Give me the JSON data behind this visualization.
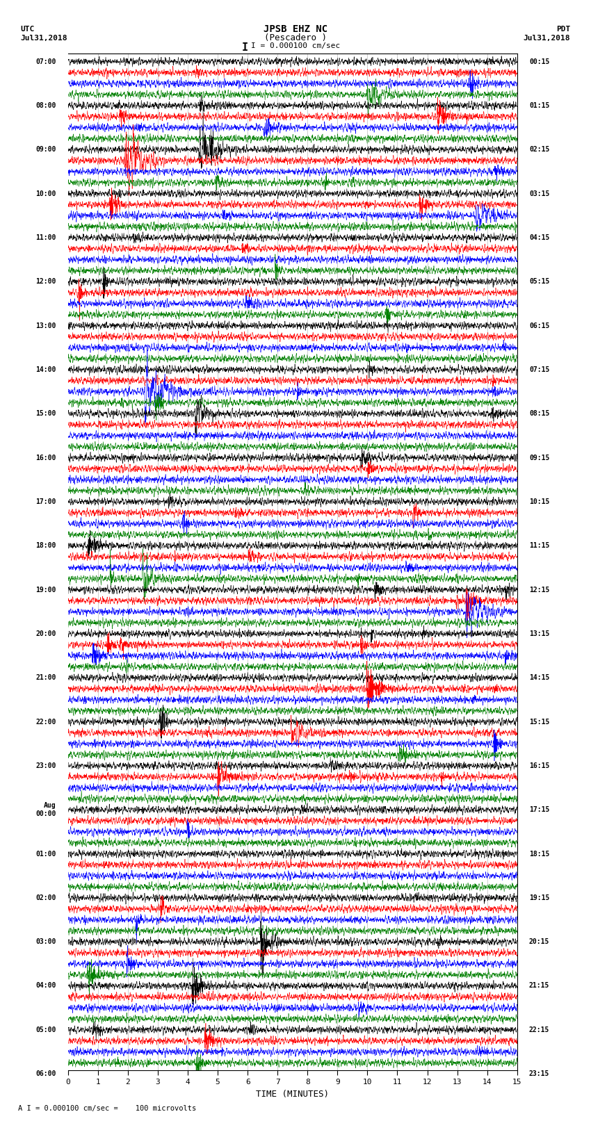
{
  "title_line1": "JPSB EHZ NC",
  "title_line2": "(Pescadero )",
  "scale_text": "I = 0.000100 cm/sec",
  "footer_text": "A I = 0.000100 cm/sec =    100 microvolts",
  "xlabel": "TIME (MINUTES)",
  "utc_label1": "UTC",
  "utc_label2": "Jul31,2018",
  "pdt_label1": "PDT",
  "pdt_label2": "Jul31,2018",
  "left_times": [
    "07:00",
    "",
    "",
    "",
    "08:00",
    "",
    "",
    "",
    "09:00",
    "",
    "",
    "",
    "10:00",
    "",
    "",
    "",
    "11:00",
    "",
    "",
    "",
    "12:00",
    "",
    "",
    "",
    "13:00",
    "",
    "",
    "",
    "14:00",
    "",
    "",
    "",
    "15:00",
    "",
    "",
    "",
    "16:00",
    "",
    "",
    "",
    "17:00",
    "",
    "",
    "",
    "18:00",
    "",
    "",
    "",
    "19:00",
    "",
    "",
    "",
    "20:00",
    "",
    "",
    "",
    "21:00",
    "",
    "",
    "",
    "22:00",
    "",
    "",
    "",
    "23:00",
    "",
    "",
    "",
    "Aug\n00:00",
    "",
    "",
    "",
    "01:00",
    "",
    "",
    "",
    "02:00",
    "",
    "",
    "",
    "03:00",
    "",
    "",
    "",
    "04:00",
    "",
    "",
    "",
    "05:00",
    "",
    "",
    "",
    "06:00",
    "",
    ""
  ],
  "right_times": [
    "00:15",
    "",
    "",
    "",
    "01:15",
    "",
    "",
    "",
    "02:15",
    "",
    "",
    "",
    "03:15",
    "",
    "",
    "",
    "04:15",
    "",
    "",
    "",
    "05:15",
    "",
    "",
    "",
    "06:15",
    "",
    "",
    "",
    "07:15",
    "",
    "",
    "",
    "08:15",
    "",
    "",
    "",
    "09:15",
    "",
    "",
    "",
    "10:15",
    "",
    "",
    "",
    "11:15",
    "",
    "",
    "",
    "12:15",
    "",
    "",
    "",
    "13:15",
    "",
    "",
    "",
    "14:15",
    "",
    "",
    "",
    "15:15",
    "",
    "",
    "",
    "16:15",
    "",
    "",
    "",
    "17:15",
    "",
    "",
    "",
    "18:15",
    "",
    "",
    "",
    "19:15",
    "",
    "",
    "",
    "20:15",
    "",
    "",
    "",
    "21:15",
    "",
    "",
    "",
    "22:15",
    "",
    "",
    "",
    "23:15",
    "",
    ""
  ],
  "trace_colors": [
    "black",
    "red",
    "blue",
    "green"
  ],
  "n_rows": 92,
  "n_samples": 3000,
  "xlim": [
    0,
    15
  ],
  "background_color": "white",
  "noise_amp": 0.28,
  "event_prob": 0.18,
  "seed": 42
}
